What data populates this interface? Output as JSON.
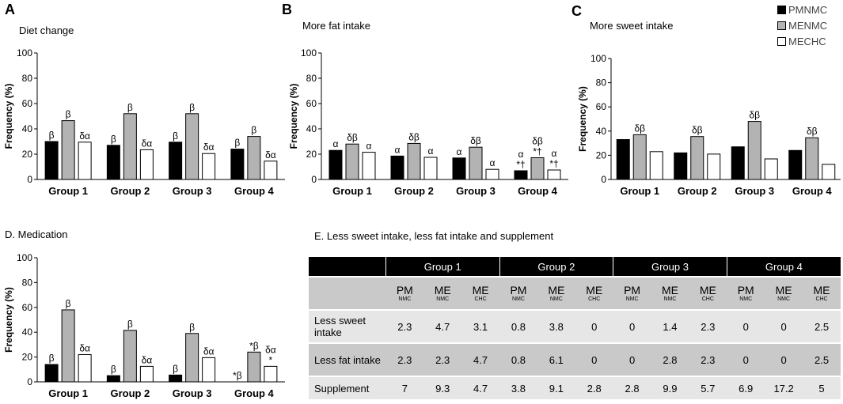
{
  "colors": {
    "PMNMC": "#000000",
    "MENMC": "#b3b3b3",
    "MECHC": "#ffffff"
  },
  "legend": [
    "PMNMC",
    "MENMC",
    "MECHC"
  ],
  "chart_data": [
    {
      "id": "A",
      "letter": "A",
      "type": "bar",
      "title": "Diet change",
      "ylabel": "Frequency (%)",
      "ylim": [
        0,
        100
      ],
      "yticks": [
        0,
        20,
        40,
        60,
        80,
        100
      ],
      "categories": [
        "Group 1",
        "Group 2",
        "Group 3",
        "Group 4"
      ],
      "series": [
        {
          "name": "PMNMC",
          "values": [
            30,
            27,
            29.5,
            24
          ]
        },
        {
          "name": "MENMC",
          "values": [
            46.5,
            52,
            52,
            34
          ]
        },
        {
          "name": "MECHC",
          "values": [
            29.5,
            23.5,
            20.5,
            14.5
          ]
        }
      ],
      "annotations": [
        [
          "β",
          "β",
          "δα"
        ],
        [
          "β",
          "β",
          "δα"
        ],
        [
          "β",
          "β",
          "δα"
        ],
        [
          "β",
          "β",
          "δα"
        ]
      ]
    },
    {
      "id": "B",
      "letter": "B",
      "type": "bar",
      "title": "More fat intake",
      "ylabel": "Frequency (%)",
      "ylim": [
        0,
        100
      ],
      "yticks": [
        0,
        20,
        40,
        60,
        80,
        100
      ],
      "categories": [
        "Group 1",
        "Group 2",
        "Group 3",
        "Group 4"
      ],
      "series": [
        {
          "name": "PMNMC",
          "values": [
            23,
            18.5,
            17,
            6.9
          ]
        },
        {
          "name": "MENMC",
          "values": [
            28,
            28.5,
            25.5,
            17.2
          ]
        },
        {
          "name": "MECHC",
          "values": [
            21.5,
            17.5,
            8,
            7.5
          ]
        }
      ],
      "annotations": [
        [
          "α",
          "δβ",
          "α"
        ],
        [
          "α",
          "δβ",
          "α"
        ],
        [
          "α",
          "δβ",
          "α"
        ],
        [
          "α\n*†",
          "δβ\n*†",
          "α\n*†"
        ]
      ]
    },
    {
      "id": "C",
      "letter": "C",
      "type": "bar",
      "title": "More sweet intake",
      "ylabel": "Frequency (%)",
      "ylim": [
        0,
        100
      ],
      "yticks": [
        0,
        20,
        40,
        60,
        80,
        100
      ],
      "categories": [
        "Group 1",
        "Group 2",
        "Group 3",
        "Group 4"
      ],
      "series": [
        {
          "name": "PMNMC",
          "values": [
            33,
            22,
            27,
            24
          ]
        },
        {
          "name": "MENMC",
          "values": [
            37,
            35.5,
            48,
            34.5
          ]
        },
        {
          "name": "MECHC",
          "values": [
            23,
            21,
            17,
            12.5
          ]
        }
      ],
      "annotations": [
        [
          "",
          "δβ",
          ""
        ],
        [
          "",
          "δβ",
          ""
        ],
        [
          "",
          "δβ",
          ""
        ],
        [
          "",
          "δβ",
          ""
        ]
      ]
    },
    {
      "id": "D",
      "letter": "",
      "type": "bar",
      "title": "D. Medication",
      "ylabel": "Frequency (%)",
      "ylim": [
        0,
        100
      ],
      "yticks": [
        0,
        20,
        40,
        60,
        80,
        100
      ],
      "categories": [
        "Group 1",
        "Group 2",
        "Group 3",
        "Group 4"
      ],
      "series": [
        {
          "name": "PMNMC",
          "values": [
            14,
            5,
            5.5,
            0
          ]
        },
        {
          "name": "MENMC",
          "values": [
            58,
            41.5,
            39,
            24
          ]
        },
        {
          "name": "MECHC",
          "values": [
            22,
            12.5,
            19.5,
            12.5
          ]
        }
      ],
      "annotations": [
        [
          "β",
          "β",
          "δα"
        ],
        [
          "β",
          "β",
          "δα"
        ],
        [
          "β",
          "β",
          "δα"
        ],
        [
          "*β",
          "*β",
          "δα\n*"
        ]
      ]
    },
    {
      "id": "E",
      "type": "table",
      "title": "E. Less sweet intake, less fat intake and supplement",
      "groups": [
        "Group 1",
        "Group 2",
        "Group 3",
        "Group 4"
      ],
      "subcols": [
        {
          "top": "PM",
          "bottom": "NMC"
        },
        {
          "top": "ME",
          "bottom": "NMC"
        },
        {
          "top": "ME",
          "bottom": "CHC"
        }
      ],
      "rows": [
        {
          "label": "Less sweet intake",
          "values": [
            "2.3",
            "4.7",
            "3.1",
            "0.8",
            "3.8",
            "0",
            "0",
            "1.4",
            "2.3",
            "0",
            "0",
            "2.5"
          ]
        },
        {
          "label": "Less fat intake",
          "values": [
            "2.3",
            "2.3",
            "4.7",
            "0.8",
            "6.1",
            "0",
            "0",
            "2.8",
            "2.3",
            "0",
            "0",
            "2.5"
          ]
        },
        {
          "label": "Supplement",
          "values": [
            "7",
            "9.3",
            "4.7",
            "3.8",
            "9.1",
            "2.8",
            "2.8",
            "9.9",
            "5.7",
            "6.9",
            "17.2",
            "5"
          ]
        }
      ]
    }
  ]
}
